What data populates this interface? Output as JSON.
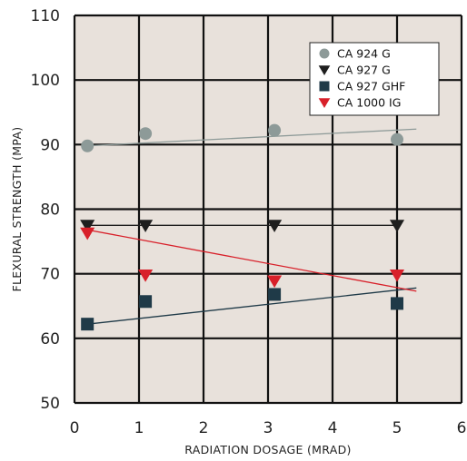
{
  "chart_data": {
    "type": "scatter",
    "xlabel": "RADIATION DOSAGE (MRAD)",
    "ylabel": "FLEXURAL STRENGTH (MPA)",
    "xlim": [
      0,
      6
    ],
    "ylim": [
      50,
      110
    ],
    "x_ticks": [
      "0",
      "1",
      "2",
      "3",
      "4",
      "5",
      "6"
    ],
    "y_ticks": [
      "50",
      "60",
      "70",
      "80",
      "90",
      "100",
      "110"
    ],
    "grid": true,
    "plot_background": "#e8e1db",
    "legend_position": "top-right",
    "series": [
      {
        "name": "CA 924 G",
        "marker": "circle",
        "color": "#8d9a98",
        "x": [
          0.2,
          1.1,
          3.1,
          5.0
        ],
        "y": [
          89.8,
          91.7,
          92.2,
          90.8
        ],
        "trend": {
          "x": [
            0.2,
            5.3
          ],
          "y": [
            89.8,
            92.4
          ]
        }
      },
      {
        "name": "CA 927 G",
        "marker": "triangle-down",
        "color": "#1e1e1e",
        "x": [
          0.2,
          1.1,
          3.1,
          5.0
        ],
        "y": [
          77.5,
          77.5,
          77.5,
          77.5
        ],
        "trend": {
          "x": [
            0.2,
            5.0
          ],
          "y": [
            77.5,
            77.5
          ]
        }
      },
      {
        "name": "CA 927 GHF",
        "marker": "square",
        "color": "#1f3a48",
        "x": [
          0.2,
          1.1,
          3.1,
          5.0
        ],
        "y": [
          62.2,
          65.7,
          66.8,
          65.4
        ],
        "trend": {
          "x": [
            0.2,
            5.3
          ],
          "y": [
            62.2,
            67.8
          ]
        }
      },
      {
        "name": "CA 1000 IG",
        "marker": "triangle-down",
        "color": "#d8202a",
        "x": [
          0.2,
          1.1,
          3.1,
          5.0
        ],
        "y": [
          76.3,
          69.8,
          68.9,
          69.8
        ],
        "trend": {
          "x": [
            0.2,
            5.3
          ],
          "y": [
            76.8,
            67.3
          ]
        }
      }
    ]
  }
}
